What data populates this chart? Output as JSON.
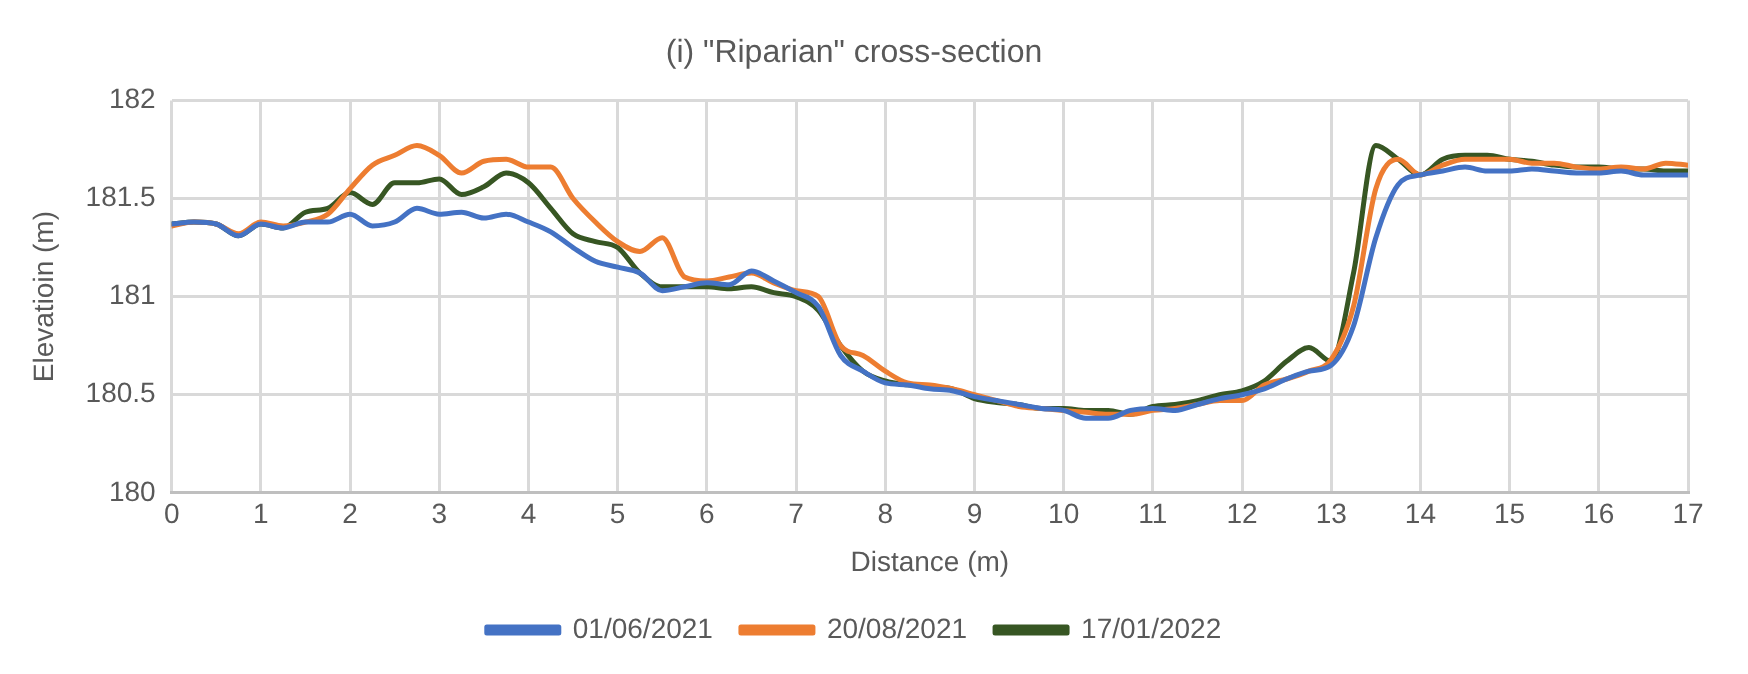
{
  "chart_data": {
    "type": "line",
    "title": "(i) \"Riparian\" cross-section",
    "xlabel": "Distance (m)",
    "ylabel": "Elevatioin (m)",
    "x": [
      0,
      0.25,
      0.5,
      0.75,
      1,
      1.25,
      1.5,
      1.75,
      2,
      2.25,
      2.5,
      2.75,
      3,
      3.25,
      3.5,
      3.75,
      4,
      4.25,
      4.5,
      4.75,
      5,
      5.25,
      5.5,
      5.75,
      6,
      6.25,
      6.5,
      6.75,
      7,
      7.25,
      7.5,
      7.75,
      8,
      8.25,
      8.5,
      8.75,
      9,
      9.25,
      9.5,
      9.75,
      10,
      10.25,
      10.5,
      10.75,
      11,
      11.25,
      11.5,
      11.75,
      12,
      12.25,
      12.5,
      12.75,
      13,
      13.25,
      13.5,
      13.75,
      14,
      14.25,
      14.5,
      14.75,
      15,
      15.25,
      15.5,
      15.75,
      16,
      16.25,
      16.5,
      16.75,
      17
    ],
    "series": [
      {
        "name": "01/06/2021",
        "color": "#4472c4",
        "values": [
          181.37,
          181.38,
          181.37,
          181.31,
          181.37,
          181.35,
          181.38,
          181.38,
          181.42,
          181.36,
          181.38,
          181.45,
          181.42,
          181.43,
          181.4,
          181.42,
          181.38,
          181.33,
          181.25,
          181.18,
          181.15,
          181.12,
          181.03,
          181.05,
          181.07,
          181.06,
          181.13,
          181.08,
          181.02,
          180.95,
          180.7,
          180.62,
          180.56,
          180.55,
          180.53,
          180.52,
          180.49,
          180.47,
          180.45,
          180.43,
          180.42,
          180.38,
          180.38,
          180.42,
          180.43,
          180.42,
          180.45,
          180.48,
          180.5,
          180.53,
          180.58,
          180.62,
          180.65,
          180.85,
          181.3,
          181.57,
          181.62,
          181.64,
          181.66,
          181.64,
          181.64,
          181.65,
          181.64,
          181.63,
          181.63,
          181.64,
          181.62,
          181.62,
          181.62
        ]
      },
      {
        "name": "20/08/2021",
        "color": "#ed7d31",
        "values": [
          181.36,
          181.38,
          181.37,
          181.32,
          181.38,
          181.36,
          181.38,
          181.42,
          181.55,
          181.67,
          181.72,
          181.77,
          181.72,
          181.63,
          181.69,
          181.7,
          181.66,
          181.66,
          181.5,
          181.38,
          181.28,
          181.23,
          181.3,
          181.1,
          181.08,
          181.1,
          181.12,
          181.07,
          181.03,
          181.0,
          180.75,
          180.7,
          180.62,
          180.56,
          180.55,
          180.53,
          180.5,
          180.47,
          180.44,
          180.43,
          180.42,
          180.41,
          180.4,
          180.4,
          180.42,
          180.43,
          180.45,
          180.47,
          180.47,
          180.55,
          180.58,
          180.62,
          180.68,
          180.95,
          181.55,
          181.7,
          181.62,
          181.67,
          181.7,
          181.7,
          181.7,
          181.68,
          181.68,
          181.66,
          181.65,
          181.66,
          181.65,
          181.68,
          181.67
        ]
      },
      {
        "name": "17/01/2022",
        "color": "#375623",
        "values": [
          181.37,
          181.38,
          181.37,
          181.31,
          181.37,
          181.35,
          181.43,
          181.45,
          181.53,
          181.47,
          181.58,
          181.58,
          181.6,
          181.52,
          181.56,
          181.63,
          181.58,
          181.45,
          181.32,
          181.28,
          181.25,
          181.12,
          181.05,
          181.05,
          181.05,
          181.04,
          181.05,
          181.02,
          181.0,
          180.93,
          180.75,
          180.62,
          180.57,
          180.55,
          180.54,
          180.53,
          180.48,
          180.46,
          180.45,
          180.43,
          180.43,
          180.42,
          180.42,
          180.4,
          180.44,
          180.45,
          180.47,
          180.5,
          180.52,
          180.57,
          180.67,
          180.74,
          180.67,
          181.12,
          181.77,
          181.7,
          181.62,
          181.7,
          181.72,
          181.72,
          181.7,
          181.69,
          181.67,
          181.66,
          181.66,
          181.65,
          181.65,
          181.64,
          181.64
        ]
      }
    ],
    "xlim": [
      0,
      17
    ],
    "xticks": [
      0,
      1,
      2,
      3,
      4,
      5,
      6,
      7,
      8,
      9,
      10,
      11,
      12,
      13,
      14,
      15,
      16,
      17
    ],
    "ylim": [
      180,
      182
    ],
    "yticks": [
      180,
      180.5,
      181,
      181.5,
      182
    ],
    "grid": true,
    "legend": "bottom",
    "marker": "none",
    "line_style": "solid"
  }
}
